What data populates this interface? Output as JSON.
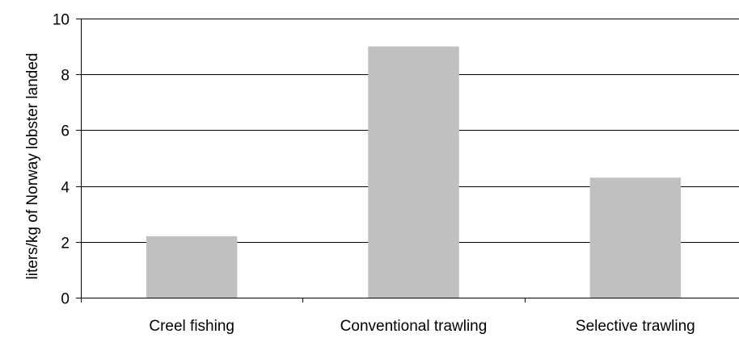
{
  "chart_data": {
    "type": "bar",
    "title": "",
    "xlabel": "",
    "ylabel": "liters/kg of Norway lobster landed",
    "categories": [
      "Creel fishing",
      "Conventional trawling",
      "Selective trawling"
    ],
    "values": [
      2.2,
      9.0,
      4.3
    ],
    "ylim": [
      0,
      10
    ],
    "yticks": [
      "0",
      "2",
      "4",
      "6",
      "8",
      "10"
    ],
    "grid": true,
    "legend": "none",
    "bar_color": "#c0c0c0",
    "axis_color": "#000000",
    "grid_color": "#000000"
  }
}
